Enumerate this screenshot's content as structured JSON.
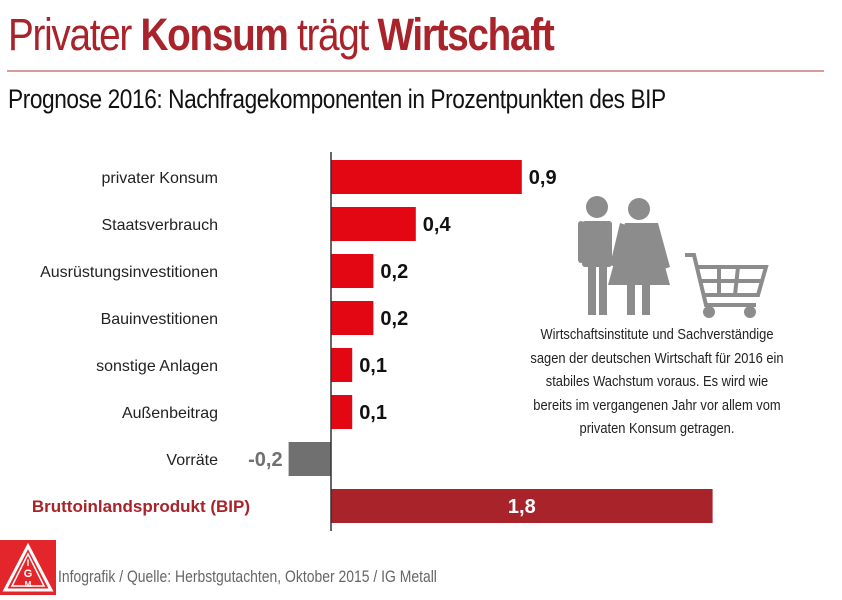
{
  "header": {
    "title_parts": [
      {
        "text": "Privater ",
        "bold": false
      },
      {
        "text": "Konsum",
        "bold": true
      },
      {
        "text": " trägt ",
        "bold": false
      },
      {
        "text": "Wirtschaft",
        "bold": true
      }
    ],
    "subtitle": "Prognose 2016: Nachfragekomponenten in Prozentpunkten des BIP"
  },
  "colors": {
    "title": "#a8232a",
    "positive_bar": "#e30613",
    "negative_bar": "#707070",
    "total_bar": "#a8232a",
    "icon_gray": "#8c8c8c"
  },
  "chart_data": {
    "type": "bar",
    "orientation": "horizontal",
    "title": "Prognose 2016: Nachfragekomponenten in Prozentpunkten des BIP",
    "xlabel": "",
    "ylabel": "",
    "unit": "Prozentpunkte des BIP",
    "categories": [
      "privater Konsum",
      "Staatsverbrauch",
      "Ausrüstungsinvestitionen",
      "Bauinvestitionen",
      "sonstige Anlagen",
      "Außenbeitrag",
      "Vorräte",
      "Bruttoinlandsprodukt (BIP)"
    ],
    "values": [
      0.9,
      0.4,
      0.2,
      0.2,
      0.1,
      0.1,
      -0.2,
      1.8
    ],
    "value_labels": [
      "0,9",
      "0,4",
      "0,2",
      "0,2",
      "0,1",
      "0,1",
      "-0,2",
      "1,8"
    ],
    "highlight_total": "Bruttoinlandsprodukt (BIP)",
    "xlim": [
      -0.2,
      1.8
    ],
    "grid": false,
    "legend": "none"
  },
  "callout": {
    "text": "Wirtschaftsinstitute und Sachverständige sagen der deutschen Wirtschaft für 2016 ein stabiles Wachstum voraus. Es wird wie bereits im vergangenen Jahr vor allem vom privaten Konsum getragen.",
    "icons": [
      "man-icon",
      "woman-icon",
      "shopping-cart-icon"
    ]
  },
  "footer": {
    "source": "Infografik / Quelle: Herbstgutachten, Oktober 2015 / IG Metall",
    "logo_letters": [
      "I",
      "G",
      "M"
    ]
  }
}
